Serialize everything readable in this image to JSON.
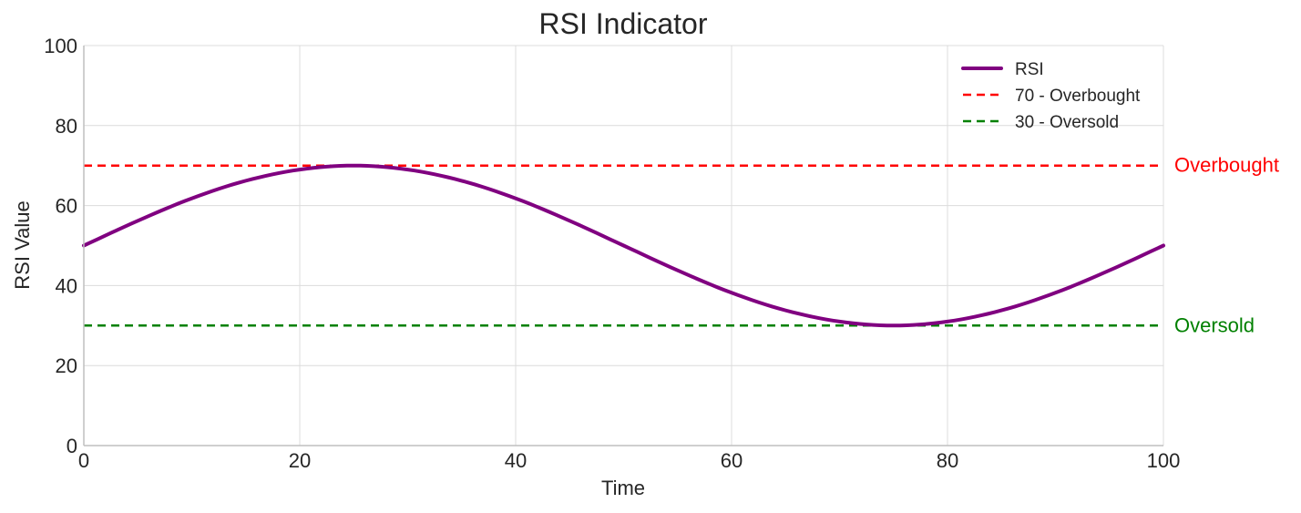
{
  "chart_data": {
    "type": "line",
    "title": "RSI Indicator",
    "xlabel": "Time",
    "ylabel": "RSI Value",
    "xlim": [
      0,
      100
    ],
    "ylim": [
      0,
      100
    ],
    "x_ticks": [
      0,
      20,
      40,
      60,
      80,
      100
    ],
    "y_ticks": [
      0,
      20,
      40,
      60,
      80,
      100
    ],
    "grid": true,
    "legend_position": "top-right",
    "series": [
      {
        "name": "RSI",
        "color": "#800080",
        "style": "solid",
        "x": [
          0,
          5,
          10,
          15,
          20,
          25,
          30,
          35,
          40,
          45,
          50,
          55,
          60,
          65,
          70,
          75,
          80,
          85,
          90,
          95,
          100
        ],
        "y": [
          50,
          56.2,
          61.8,
          66.2,
          69.0,
          70.0,
          69.0,
          66.2,
          61.8,
          56.2,
          50,
          43.8,
          38.2,
          33.8,
          31.0,
          30.0,
          31.0,
          33.8,
          38.2,
          43.8,
          50
        ]
      }
    ],
    "reference_lines": [
      {
        "name": "70 - Overbought",
        "value": 70,
        "color": "#ff0000",
        "style": "dashed",
        "side_label": "Overbought"
      },
      {
        "name": "30 - Oversold",
        "value": 30,
        "color": "#008000",
        "style": "dashed",
        "side_label": "Oversold"
      }
    ]
  }
}
